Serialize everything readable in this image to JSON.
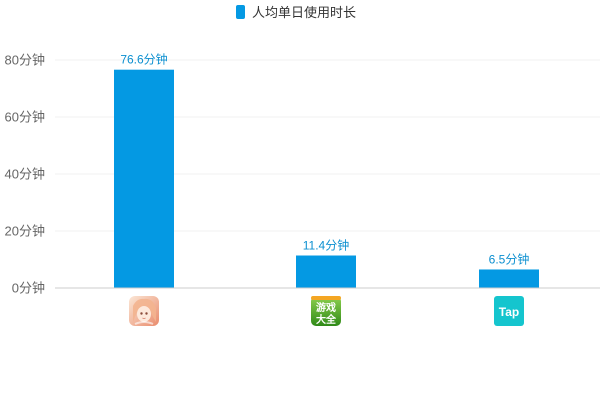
{
  "legend": {
    "label": "人均单日使用时长",
    "color": "#0499e3"
  },
  "chart_data": {
    "type": "bar",
    "categories": [
      "app-icon-anime-game",
      "app-icon-youxi-daquan",
      "app-icon-taptap"
    ],
    "series": [
      {
        "name": "人均单日使用时长",
        "values": [
          76.6,
          11.4,
          6.5
        ],
        "data_labels": [
          "76.6分钟",
          "11.4分钟",
          "6.5分钟"
        ],
        "color": "#0499e3"
      }
    ],
    "y_ticks": [
      0,
      20,
      40,
      60,
      80
    ],
    "y_tick_labels": [
      "0分钟",
      "20分钟",
      "40分钟",
      "60分钟",
      "80分钟"
    ],
    "ylim": [
      0,
      80
    ],
    "grid": true,
    "legend_position": "top-center"
  },
  "icons": [
    {
      "name": "anime-game-app-icon",
      "colors": [
        "#f6c9a8",
        "#e98b6c",
        "#fbe7d6"
      ]
    },
    {
      "name": "youxi-daquan-app-icon",
      "text_top": "游戏",
      "text_bottom": "大全",
      "colors": [
        "#7cc242",
        "#3f8f1f"
      ]
    },
    {
      "name": "taptap-app-icon",
      "text": "Tap",
      "color": "#15c5ce"
    }
  ],
  "colors": {
    "bar": "#0499e3",
    "data_label": "#0b8fd0",
    "tick_label": "#666666",
    "grid": "#f0f0f0",
    "axis": "#cccccc"
  }
}
